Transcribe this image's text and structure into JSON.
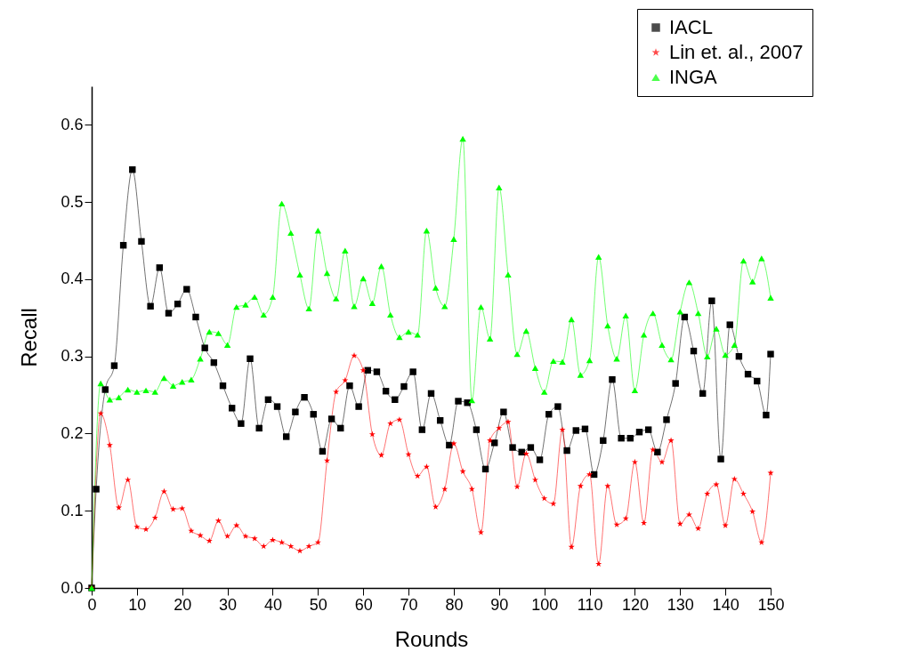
{
  "chart_data": {
    "type": "line",
    "xlabel": "Rounds",
    "ylabel": "Recall",
    "xlim": [
      0,
      150
    ],
    "xticks": [
      0,
      10,
      20,
      30,
      40,
      50,
      60,
      70,
      80,
      90,
      100,
      110,
      120,
      130,
      140,
      150
    ],
    "ylim": [
      0,
      0.65
    ],
    "yticks": [
      {
        "value": 0,
        "label": "0.0"
      },
      {
        "value": 0.1,
        "label": "0.1"
      },
      {
        "value": 0.2,
        "label": "0.2"
      },
      {
        "value": 0.3,
        "label": "0.3"
      },
      {
        "value": 0.4,
        "label": "0.4"
      },
      {
        "value": 0.5,
        "label": "0.5"
      },
      {
        "value": 0.6,
        "label": "0.6"
      }
    ],
    "legend": "top right",
    "grid": false,
    "line_style": "solid",
    "series": [
      {
        "name": "IACL",
        "color": "#000000",
        "marker": "square",
        "x": [
          0,
          1,
          3,
          5,
          7,
          9,
          11,
          13,
          15,
          17,
          19,
          21,
          23,
          25,
          27,
          29,
          31,
          33,
          35,
          37,
          39,
          41,
          43,
          45,
          47,
          49,
          51,
          53,
          55,
          57,
          59,
          61,
          63,
          65,
          67,
          69,
          71,
          73,
          75,
          77,
          79,
          81,
          83,
          85,
          87,
          89,
          91,
          93,
          95,
          97,
          99,
          101,
          103,
          105,
          107,
          109,
          111,
          113,
          115,
          117,
          119,
          121,
          123,
          125,
          127,
          129,
          131,
          133,
          135,
          137,
          139,
          141,
          143,
          145,
          147,
          149,
          150
        ],
        "values": [
          0,
          0.128,
          0.257,
          0.288,
          0.444,
          0.542,
          0.449,
          0.365,
          0.415,
          0.356,
          0.368,
          0.387,
          0.351,
          0.311,
          0.292,
          0.262,
          0.233,
          0.213,
          0.297,
          0.207,
          0.244,
          0.235,
          0.196,
          0.228,
          0.247,
          0.225,
          0.177,
          0.219,
          0.207,
          0.262,
          0.235,
          0.282,
          0.28,
          0.255,
          0.244,
          0.261,
          0.28,
          0.205,
          0.252,
          0.217,
          0.185,
          0.242,
          0.24,
          0.205,
          0.154,
          0.188,
          0.228,
          0.182,
          0.176,
          0.182,
          0.166,
          0.225,
          0.235,
          0.178,
          0.204,
          0.206,
          0.147,
          0.191,
          0.27,
          0.194,
          0.194,
          0.202,
          0.205,
          0.176,
          0.218,
          0.265,
          0.351,
          0.307,
          0.252,
          0.372,
          0.167,
          0.341,
          0.3,
          0.277,
          0.268,
          0.224,
          0.303
        ]
      },
      {
        "name": "Lin et. al., 2007",
        "color": "#ff0000",
        "marker": "star",
        "x": [
          0,
          2,
          4,
          6,
          8,
          10,
          12,
          14,
          16,
          18,
          20,
          22,
          24,
          26,
          28,
          30,
          32,
          34,
          36,
          38,
          40,
          42,
          44,
          46,
          48,
          50,
          52,
          54,
          56,
          58,
          60,
          62,
          64,
          66,
          68,
          70,
          72,
          74,
          76,
          78,
          80,
          82,
          84,
          86,
          88,
          90,
          92,
          94,
          96,
          98,
          100,
          102,
          104,
          106,
          108,
          110,
          112,
          114,
          116,
          118,
          120,
          122,
          124,
          126,
          128,
          130,
          132,
          134,
          136,
          138,
          140,
          142,
          144,
          146,
          148,
          150
        ],
        "values": [
          0,
          0.226,
          0.185,
          0.104,
          0.14,
          0.079,
          0.076,
          0.091,
          0.125,
          0.102,
          0.103,
          0.074,
          0.068,
          0.061,
          0.087,
          0.067,
          0.081,
          0.067,
          0.064,
          0.054,
          0.062,
          0.059,
          0.054,
          0.048,
          0.054,
          0.059,
          0.165,
          0.254,
          0.269,
          0.301,
          0.282,
          0.199,
          0.172,
          0.213,
          0.218,
          0.173,
          0.145,
          0.157,
          0.105,
          0.128,
          0.187,
          0.151,
          0.128,
          0.072,
          0.191,
          0.207,
          0.215,
          0.131,
          0.174,
          0.14,
          0.116,
          0.109,
          0.205,
          0.053,
          0.132,
          0.147,
          0.031,
          0.132,
          0.082,
          0.09,
          0.163,
          0.084,
          0.179,
          0.163,
          0.191,
          0.083,
          0.095,
          0.077,
          0.122,
          0.134,
          0.081,
          0.141,
          0.122,
          0.099,
          0.059,
          0.149
        ]
      },
      {
        "name": "INGA",
        "color": "#00ff00",
        "marker": "triangle",
        "x": [
          0,
          2,
          4,
          6,
          8,
          10,
          12,
          14,
          16,
          18,
          20,
          22,
          24,
          26,
          28,
          30,
          32,
          34,
          36,
          38,
          40,
          42,
          44,
          46,
          48,
          50,
          52,
          54,
          56,
          58,
          60,
          62,
          64,
          66,
          68,
          70,
          72,
          74,
          76,
          78,
          80,
          82,
          84,
          86,
          88,
          90,
          92,
          94,
          96,
          98,
          100,
          102,
          104,
          106,
          108,
          110,
          112,
          114,
          116,
          118,
          120,
          122,
          124,
          126,
          128,
          130,
          132,
          134,
          136,
          138,
          140,
          142,
          144,
          146,
          148,
          150
        ],
        "values": [
          0,
          0.265,
          0.244,
          0.247,
          0.257,
          0.254,
          0.256,
          0.254,
          0.272,
          0.262,
          0.267,
          0.27,
          0.297,
          0.332,
          0.33,
          0.315,
          0.364,
          0.367,
          0.377,
          0.354,
          0.377,
          0.498,
          0.46,
          0.406,
          0.362,
          0.463,
          0.408,
          0.375,
          0.437,
          0.365,
          0.401,
          0.369,
          0.417,
          0.354,
          0.325,
          0.332,
          0.328,
          0.463,
          0.389,
          0.365,
          0.452,
          0.582,
          0.243,
          0.364,
          0.323,
          0.519,
          0.406,
          0.303,
          0.333,
          0.285,
          0.254,
          0.294,
          0.293,
          0.348,
          0.276,
          0.295,
          0.429,
          0.34,
          0.297,
          0.353,
          0.256,
          0.328,
          0.356,
          0.315,
          0.296,
          0.358,
          0.396,
          0.356,
          0.3,
          0.336,
          0.302,
          0.315,
          0.424,
          0.397,
          0.427,
          0.376
        ]
      }
    ]
  }
}
